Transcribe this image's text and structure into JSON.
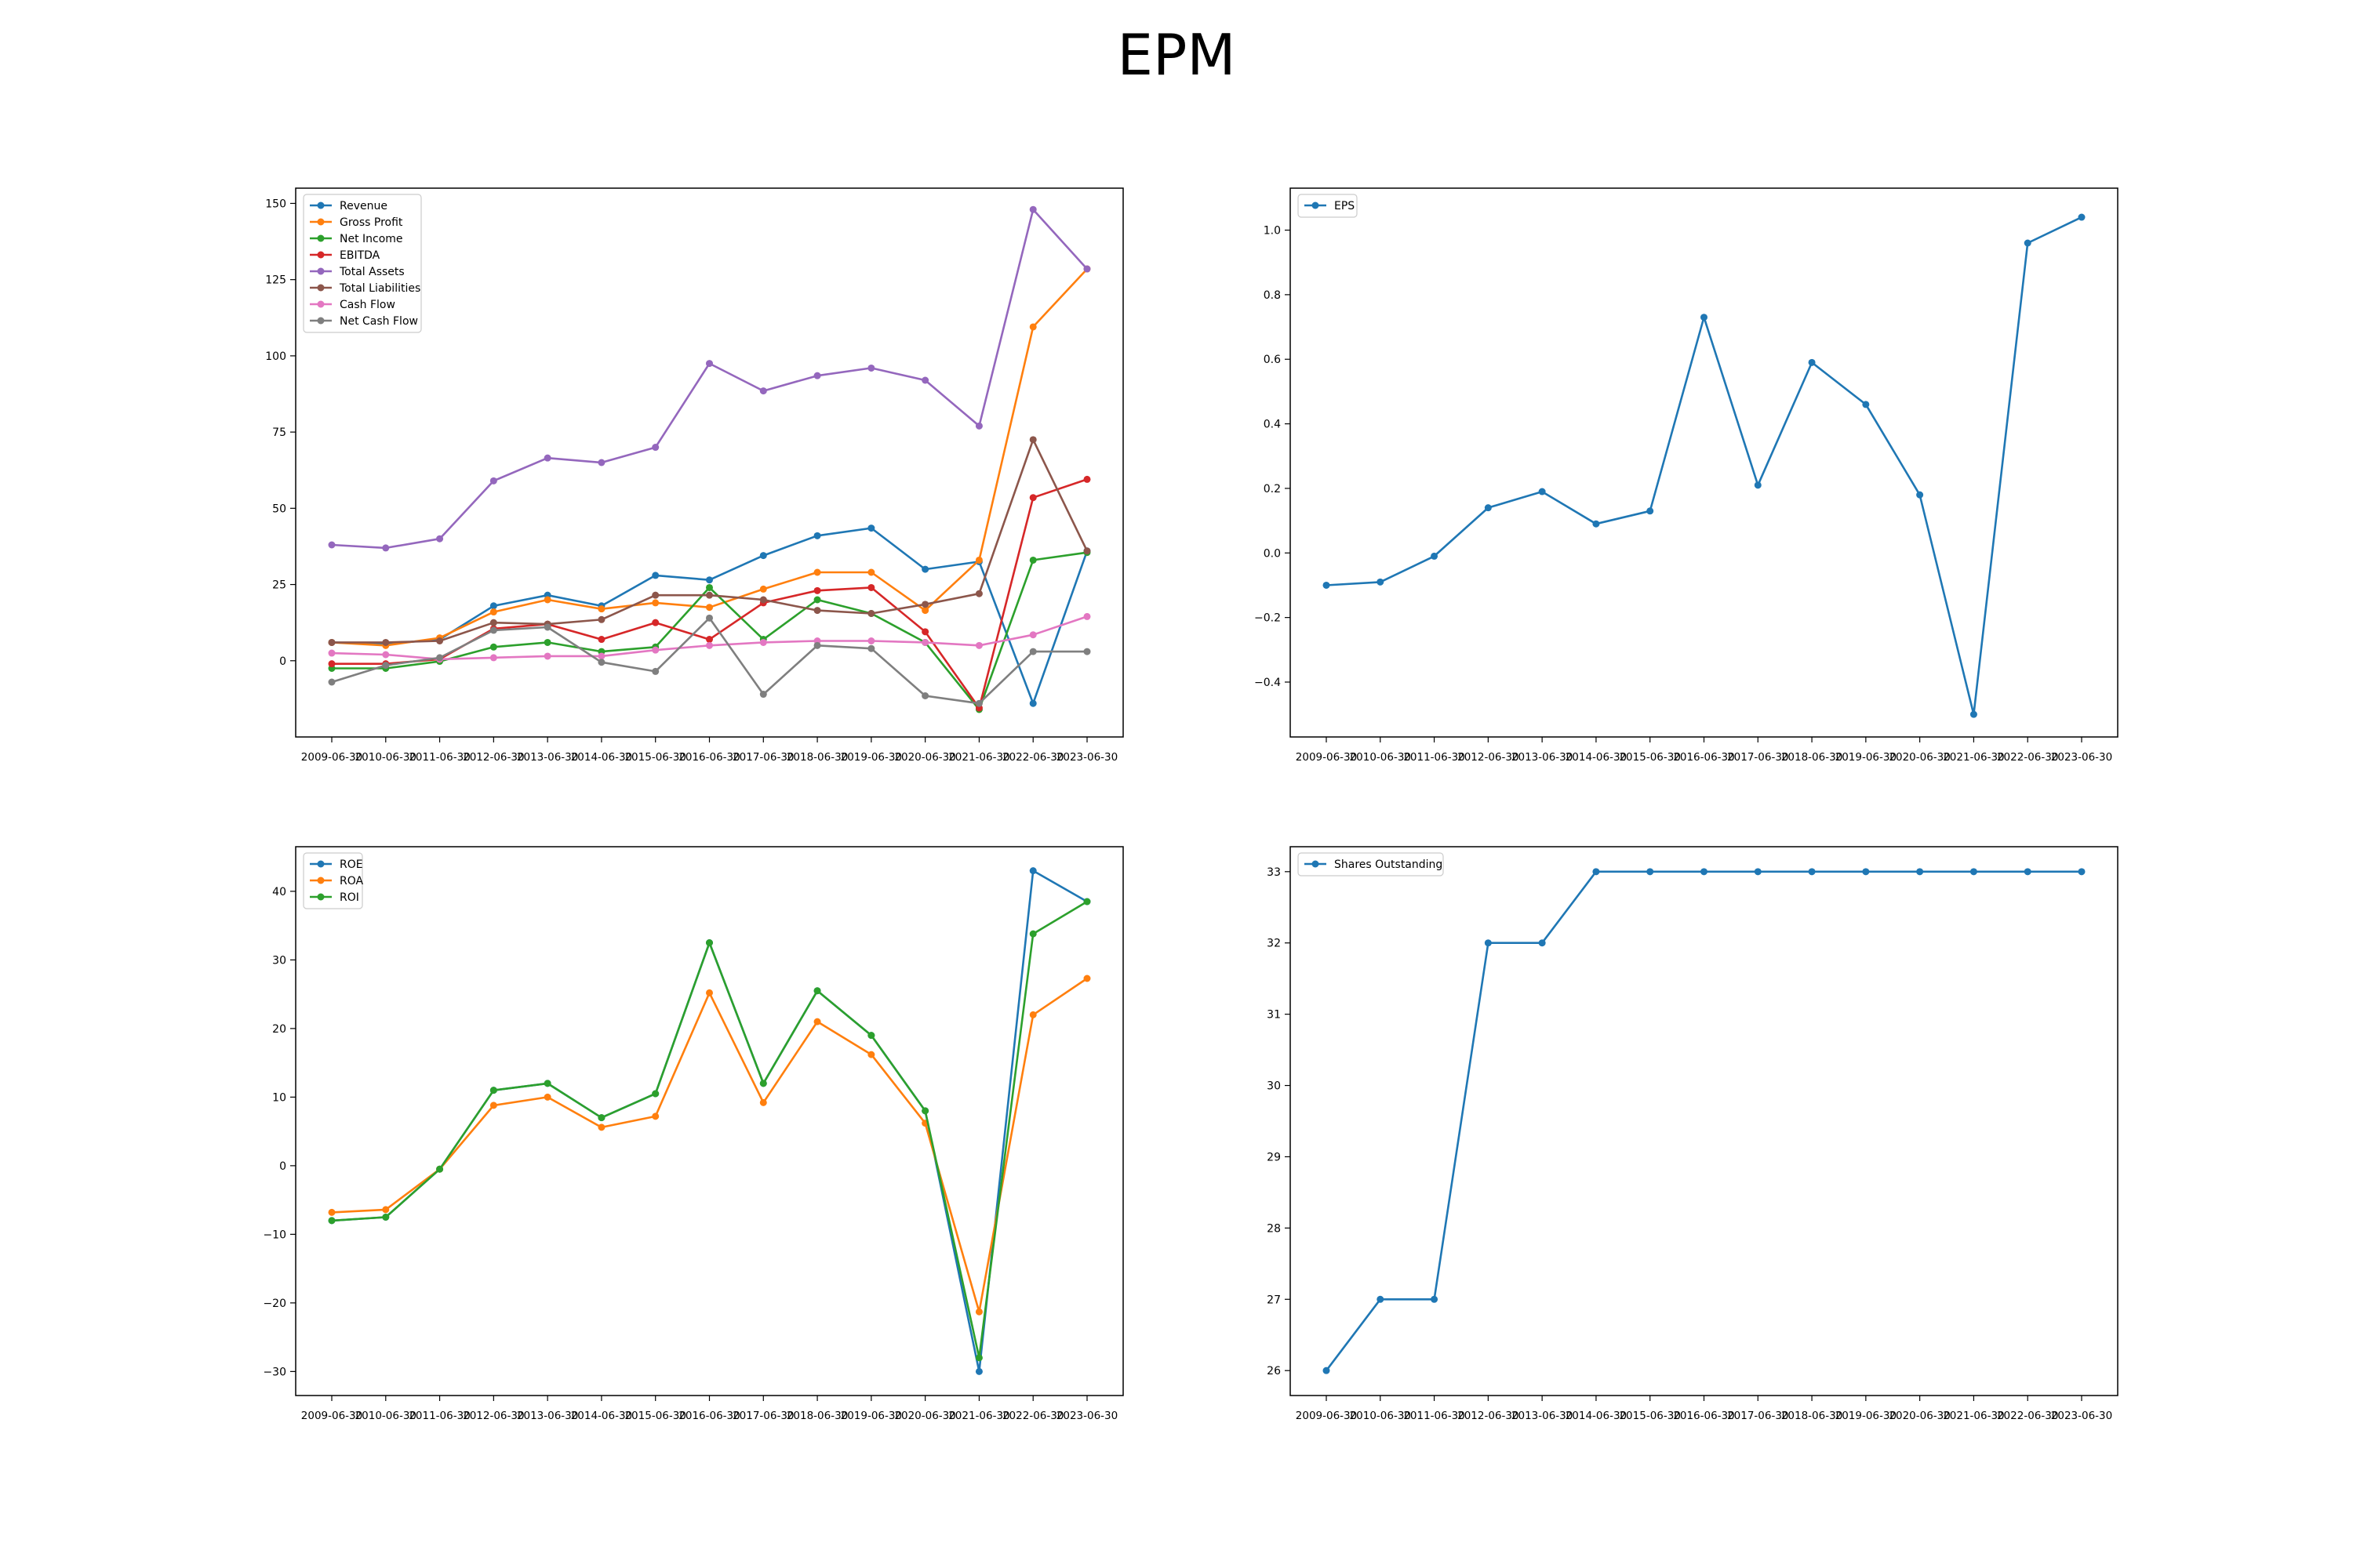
{
  "title": "EPM",
  "chart_data": [
    {
      "type": "line",
      "x": [
        "2009-06-30",
        "2010-06-30",
        "2011-06-30",
        "2012-06-30",
        "2013-06-30",
        "2014-06-30",
        "2015-06-30",
        "2016-06-30",
        "2017-06-30",
        "2018-06-30",
        "2019-06-30",
        "2020-06-30",
        "2021-06-30",
        "2022-06-30",
        "2023-06-30"
      ],
      "ylim": [
        -25,
        155
      ],
      "yticks": [
        0,
        25,
        50,
        75,
        100,
        125,
        150
      ],
      "legend": "top-left",
      "series": [
        {
          "name": "Revenue",
          "color": "#1f77b4",
          "values": [
            6,
            5.5,
            7,
            18,
            21.5,
            18,
            28,
            26.5,
            34.5,
            41,
            43.5,
            30,
            32.5,
            -14,
            36
          ]
        },
        {
          "name": "Gross Profit",
          "color": "#ff7f0e",
          "values": [
            6,
            5,
            7.5,
            16,
            20,
            17,
            19,
            17.5,
            23.5,
            29,
            29,
            16.5,
            33,
            109.5,
            128.5
          ]
        },
        {
          "name": "Net Income",
          "color": "#2ca02c",
          "values": [
            -2.5,
            -2.5,
            -0.2,
            4.5,
            6,
            3,
            4.5,
            24,
            7,
            20,
            15.5,
            6,
            -16,
            33,
            35.5
          ]
        },
        {
          "name": "EBITDA",
          "color": "#d62728",
          "values": [
            -1,
            -1,
            0.5,
            10.5,
            12,
            7,
            12.5,
            7,
            19,
            23,
            24,
            9.5,
            -15.5,
            53.5,
            59.5
          ]
        },
        {
          "name": "Total Assets",
          "color": "#9467bd",
          "values": [
            38,
            37,
            40,
            59,
            66.5,
            65,
            70,
            97.5,
            88.5,
            93.5,
            96,
            92,
            77,
            148,
            128.5
          ]
        },
        {
          "name": "Total Liabilities",
          "color": "#8c564b",
          "values": [
            6,
            6,
            6.5,
            12.5,
            12,
            13.5,
            21.5,
            21.5,
            20,
            16.5,
            15.5,
            18.5,
            22,
            72.5,
            36
          ]
        },
        {
          "name": "Cash Flow",
          "color": "#e377c2",
          "values": [
            2.5,
            2,
            0.5,
            1,
            1.5,
            1.5,
            3.5,
            5,
            6,
            6.5,
            6.5,
            6,
            5,
            8.5,
            14.5
          ]
        },
        {
          "name": "Net Cash Flow",
          "color": "#7f7f7f",
          "values": [
            -7,
            -1.5,
            1,
            10,
            11,
            -0.5,
            -3.5,
            14,
            -11,
            5,
            4,
            -11.5,
            -14,
            3,
            3
          ]
        }
      ]
    },
    {
      "type": "line",
      "x": [
        "2009-06-30",
        "2010-06-30",
        "2011-06-30",
        "2012-06-30",
        "2013-06-30",
        "2014-06-30",
        "2015-06-30",
        "2016-06-30",
        "2017-06-30",
        "2018-06-30",
        "2019-06-30",
        "2020-06-30",
        "2021-06-30",
        "2022-06-30",
        "2023-06-30"
      ],
      "ylim": [
        -0.57,
        1.13
      ],
      "yticks": [
        -0.4,
        -0.2,
        0.0,
        0.2,
        0.4,
        0.6,
        0.8,
        1.0
      ],
      "ytick_labels": [
        "−0.4",
        "−0.2",
        "0.0",
        "0.2",
        "0.4",
        "0.6",
        "0.8",
        "1.0"
      ],
      "legend": "top-left",
      "series": [
        {
          "name": "EPS",
          "color": "#1f77b4",
          "values": [
            -0.1,
            -0.09,
            -0.01,
            0.14,
            0.19,
            0.09,
            0.13,
            0.73,
            0.21,
            0.59,
            0.46,
            0.18,
            -0.5,
            0.96,
            1.04
          ]
        }
      ]
    },
    {
      "type": "line",
      "x": [
        "2009-06-30",
        "2010-06-30",
        "2011-06-30",
        "2012-06-30",
        "2013-06-30",
        "2014-06-30",
        "2015-06-30",
        "2016-06-30",
        "2017-06-30",
        "2018-06-30",
        "2019-06-30",
        "2020-06-30",
        "2021-06-30",
        "2022-06-30",
        "2023-06-30"
      ],
      "ylim": [
        -33.5,
        46.5
      ],
      "yticks": [
        -30,
        -20,
        -10,
        0,
        10,
        20,
        30,
        40
      ],
      "ytick_labels": [
        "−30",
        "−20",
        "−10",
        "0",
        "10",
        "20",
        "30",
        "40"
      ],
      "legend": "top-left",
      "series": [
        {
          "name": "ROE",
          "color": "#1f77b4",
          "values": [
            -8,
            -7.5,
            -0.5,
            11,
            12,
            7,
            10.5,
            32.5,
            12,
            25.5,
            19,
            8,
            -30,
            43,
            38.5
          ]
        },
        {
          "name": "ROA",
          "color": "#ff7f0e",
          "values": [
            -6.8,
            -6.4,
            -0.5,
            8.8,
            10,
            5.6,
            7.2,
            25.2,
            9.2,
            21,
            16.2,
            6.2,
            -21.3,
            22,
            27.3
          ]
        },
        {
          "name": "ROI",
          "color": "#2ca02c",
          "values": [
            -8,
            -7.5,
            -0.5,
            11,
            12,
            7,
            10.5,
            32.5,
            12,
            25.5,
            19,
            8,
            -28,
            33.8,
            38.5
          ]
        }
      ]
    },
    {
      "type": "line",
      "x": [
        "2009-06-30",
        "2010-06-30",
        "2011-06-30",
        "2012-06-30",
        "2013-06-30",
        "2014-06-30",
        "2015-06-30",
        "2016-06-30",
        "2017-06-30",
        "2018-06-30",
        "2019-06-30",
        "2020-06-30",
        "2021-06-30",
        "2022-06-30",
        "2023-06-30"
      ],
      "ylim": [
        25.65,
        33.35
      ],
      "yticks": [
        26,
        27,
        28,
        29,
        30,
        31,
        32,
        33
      ],
      "legend": "top-left",
      "series": [
        {
          "name": "Shares Outstanding",
          "color": "#1f77b4",
          "values": [
            26,
            27,
            27,
            32,
            32,
            33,
            33,
            33,
            33,
            33,
            33,
            33,
            33,
            33,
            33
          ]
        }
      ]
    }
  ]
}
